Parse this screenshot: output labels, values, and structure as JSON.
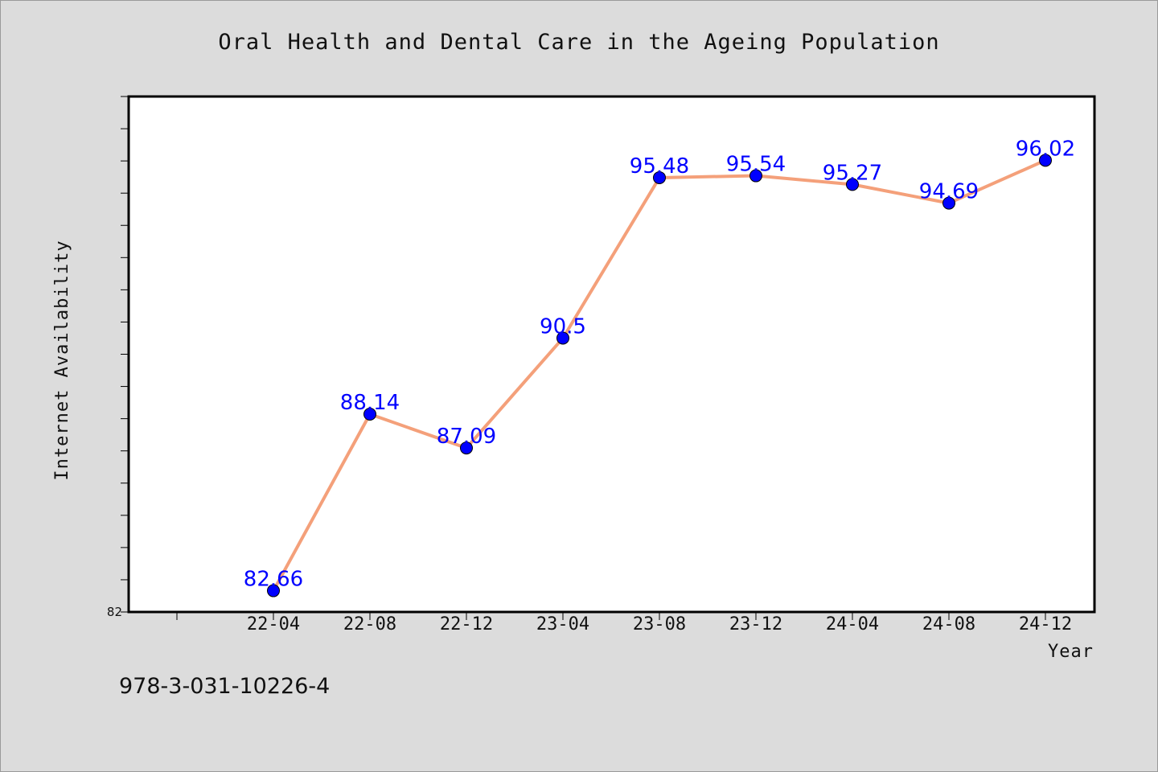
{
  "chart_data": {
    "type": "line",
    "title": "Oral Health and Dental Care in the Ageing Population",
    "xlabel": "Year",
    "ylabel": "Internet Availability",
    "categories": [
      "22-04",
      "22-08",
      "22-12",
      "23-04",
      "23-08",
      "23-12",
      "24-04",
      "24-08",
      "24-12"
    ],
    "series": [
      {
        "values": [
          82.66,
          88.14,
          87.09,
          90.5,
          95.48,
          95.54,
          95.27,
          94.69,
          96.02
        ],
        "line_color": "#f4a07a",
        "marker_color": "#0000ff"
      }
    ],
    "data_labels": [
      "82.66",
      "88.14",
      "87.09",
      "90.5",
      "95.48",
      "95.54",
      "95.27",
      "94.69",
      "96.02"
    ],
    "ylim": [
      82,
      98
    ],
    "y_tick_step": 1,
    "y_tick_labels": [
      "82"
    ],
    "grid": false,
    "legend": "none"
  },
  "footnote": "978-3-031-10226-4"
}
